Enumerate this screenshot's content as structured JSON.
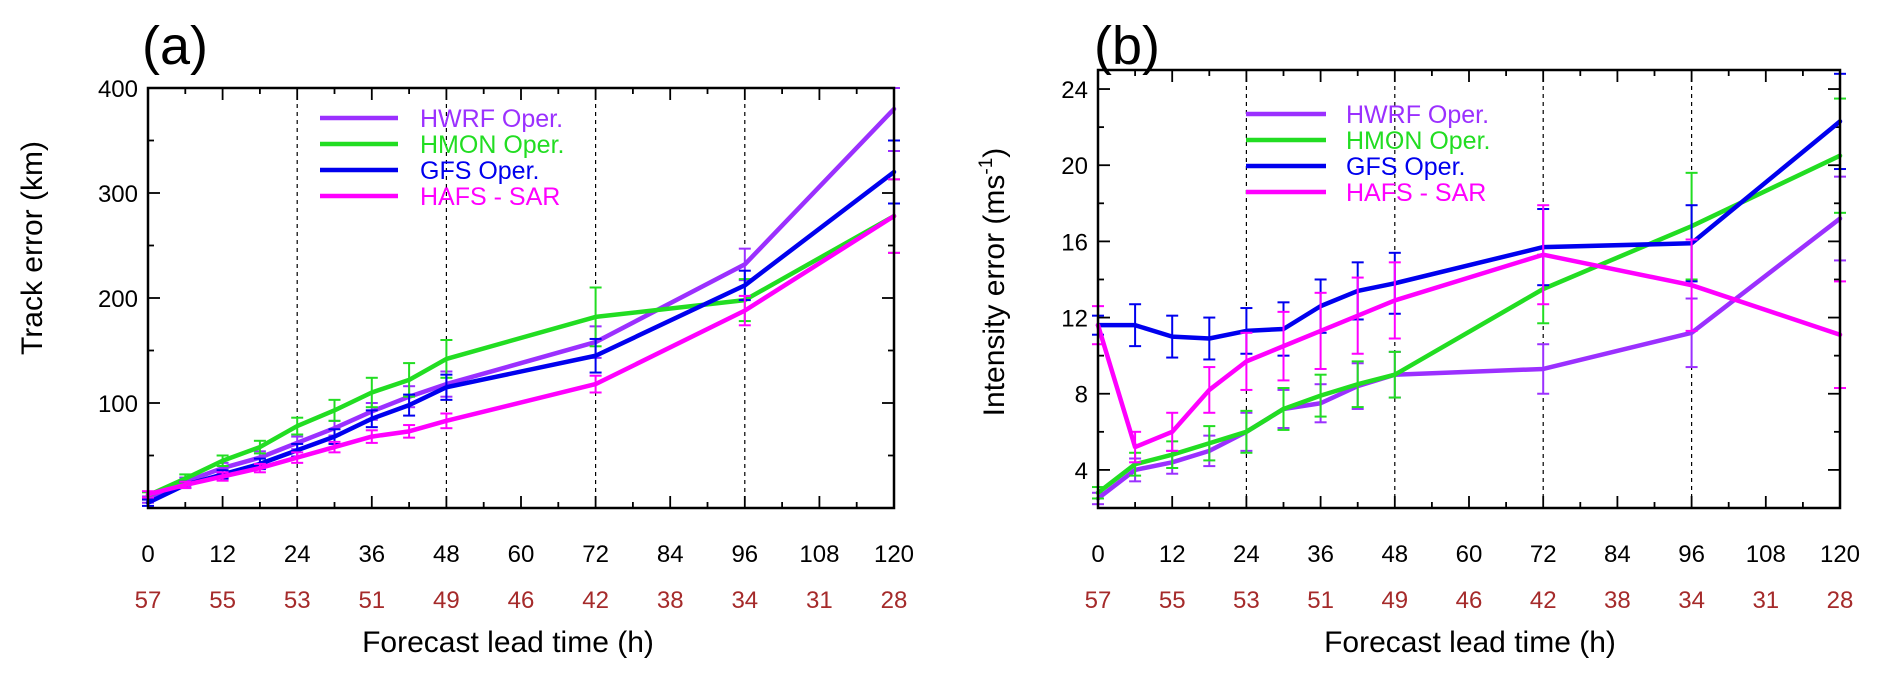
{
  "figure": {
    "x_label": "Forecast lead time (h)",
    "case_count_color": "#a52a2a",
    "x_ticks": [
      0,
      12,
      24,
      36,
      48,
      60,
      72,
      84,
      96,
      108,
      120
    ],
    "case_counts": [
      "57",
      "55",
      "53",
      "51",
      "49",
      "46",
      "42",
      "38",
      "34",
      "31",
      "28"
    ]
  },
  "chart_data": [
    {
      "type": "line",
      "panel": "(a)",
      "title": "(a)",
      "xlabel": "Forecast lead time (h)",
      "ylabel": "Track error (km)",
      "xlim": [
        0,
        120
      ],
      "ylim": [
        0,
        400
      ],
      "xticks": [
        0,
        12,
        24,
        36,
        48,
        60,
        72,
        84,
        96,
        108,
        120
      ],
      "yticks": [
        100,
        200,
        300,
        400
      ],
      "vlines": [
        24,
        48,
        72,
        96
      ],
      "legend_position": "top-left",
      "x": [
        0,
        6,
        12,
        18,
        24,
        30,
        36,
        42,
        48,
        72,
        96,
        120
      ],
      "series": [
        {
          "name": "HWRF Oper.",
          "color": "#9b30ff",
          "values": [
            8,
            25,
            38,
            48,
            62,
            76,
            92,
            106,
            118,
            158,
            232,
            380
          ],
          "errors": [
            3,
            4,
            5,
            6,
            6,
            7,
            8,
            10,
            12,
            15,
            15,
            40
          ]
        },
        {
          "name": "HMON Oper.",
          "color": "#22dd22",
          "values": [
            12,
            28,
            45,
            58,
            78,
            93,
            110,
            122,
            142,
            182,
            198,
            278
          ],
          "errors": [
            3,
            4,
            5,
            6,
            8,
            10,
            14,
            16,
            18,
            28,
            20,
            35
          ]
        },
        {
          "name": "GFS Oper.",
          "color": "#0000ee",
          "values": [
            5,
            22,
            32,
            42,
            55,
            68,
            85,
            98,
            115,
            145,
            212,
            320
          ],
          "errors": [
            3,
            3,
            4,
            5,
            6,
            7,
            8,
            10,
            12,
            16,
            14,
            30
          ]
        },
        {
          "name": "HAFS - SAR",
          "color": "#ff00ff",
          "values": [
            13,
            22,
            30,
            38,
            48,
            58,
            68,
            73,
            83,
            118,
            188,
            278
          ],
          "errors": [
            3,
            3,
            4,
            4,
            5,
            5,
            6,
            6,
            7,
            8,
            14,
            35
          ]
        }
      ]
    },
    {
      "type": "line",
      "panel": "(b)",
      "title": "(b)",
      "xlabel": "Forecast lead time (h)",
      "ylabel": "Intensity error (ms",
      "ylabel_superscript": "-1",
      "ylabel_suffix": ")",
      "xlim": [
        0,
        120
      ],
      "ylim": [
        2,
        25
      ],
      "xticks": [
        0,
        12,
        24,
        36,
        48,
        60,
        72,
        84,
        96,
        108,
        120
      ],
      "yticks": [
        4,
        8,
        12,
        16,
        20,
        24
      ],
      "vlines": [
        24,
        48,
        72,
        96
      ],
      "legend_position": "top-center",
      "x": [
        0,
        6,
        12,
        18,
        24,
        30,
        36,
        42,
        48,
        72,
        96,
        120
      ],
      "series": [
        {
          "name": "HWRF Oper.",
          "color": "#9b30ff",
          "values": [
            2.5,
            4.0,
            4.4,
            5.0,
            6.0,
            7.2,
            7.5,
            8.4,
            9.0,
            9.3,
            11.2,
            17.2
          ],
          "errors": [
            0.3,
            0.6,
            0.6,
            0.8,
            1.0,
            1.0,
            1.0,
            1.2,
            1.2,
            1.3,
            1.8,
            2.2
          ]
        },
        {
          "name": "HMON Oper.",
          "color": "#22dd22",
          "values": [
            2.8,
            4.3,
            4.8,
            5.4,
            6.0,
            7.2,
            7.9,
            8.5,
            9.0,
            13.5,
            16.8,
            20.5
          ],
          "errors": [
            0.3,
            0.6,
            0.7,
            0.9,
            1.1,
            1.1,
            1.1,
            1.2,
            1.2,
            1.8,
            2.8,
            3.0
          ]
        },
        {
          "name": "GFS Oper.",
          "color": "#0000ee",
          "values": [
            11.6,
            11.6,
            11.0,
            10.9,
            11.3,
            11.4,
            12.6,
            13.4,
            13.8,
            15.7,
            15.9,
            22.3
          ],
          "errors": [
            0.5,
            1.1,
            1.1,
            1.1,
            1.2,
            1.4,
            1.4,
            1.5,
            1.6,
            2.0,
            2.0,
            2.5
          ]
        },
        {
          "name": "HAFS - SAR",
          "color": "#ff00ff",
          "values": [
            11.6,
            5.2,
            6.0,
            8.2,
            9.7,
            10.5,
            11.3,
            12.1,
            12.9,
            15.3,
            13.7,
            11.1
          ],
          "errors": [
            1.0,
            0.8,
            1.0,
            1.2,
            1.5,
            1.8,
            2.0,
            2.0,
            2.0,
            2.6,
            2.4,
            2.8
          ]
        }
      ]
    }
  ]
}
